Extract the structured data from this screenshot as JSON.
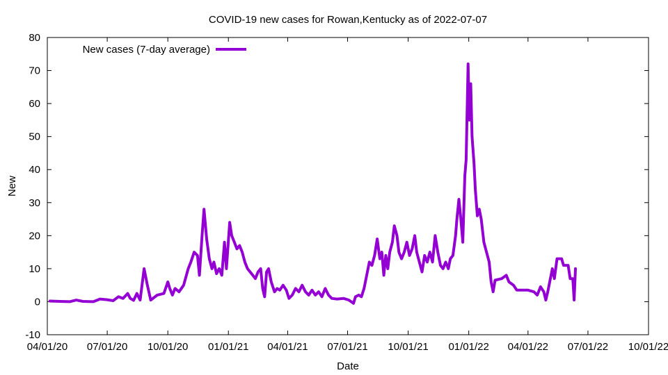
{
  "chart_data": {
    "type": "line",
    "title": "COVID-19 new cases for Rowan,Kentucky as of 2022-07-07",
    "xlabel": "Date",
    "ylabel": "New",
    "legend": {
      "label": "New cases (7-day average)",
      "placement": "top-left"
    },
    "series_color": "#9400d3",
    "xlim": [
      "2020-04-01",
      "2022-10-01"
    ],
    "ylim": [
      -10,
      80
    ],
    "yticks": [
      -10,
      0,
      10,
      20,
      30,
      40,
      50,
      60,
      70,
      80
    ],
    "xticks": [
      {
        "date": "2020-04-01",
        "label": "04/01/20"
      },
      {
        "date": "2020-07-01",
        "label": "07/01/20"
      },
      {
        "date": "2020-10-01",
        "label": "10/01/20"
      },
      {
        "date": "2021-01-01",
        "label": "01/01/21"
      },
      {
        "date": "2021-04-01",
        "label": "04/01/21"
      },
      {
        "date": "2021-07-01",
        "label": "07/01/21"
      },
      {
        "date": "2021-10-01",
        "label": "10/01/21"
      },
      {
        "date": "2022-01-01",
        "label": "01/01/22"
      },
      {
        "date": "2022-04-01",
        "label": "04/01/22"
      },
      {
        "date": "2022-07-01",
        "label": "07/01/22"
      },
      {
        "date": "2022-10-01",
        "label": "10/01/22"
      }
    ],
    "grid": false,
    "series": [
      {
        "name": "New cases (7-day average)",
        "points": [
          [
            "2020-04-05",
            0.2
          ],
          [
            "2020-04-20",
            0.1
          ],
          [
            "2020-05-05",
            0.0
          ],
          [
            "2020-05-15",
            0.5
          ],
          [
            "2020-05-25",
            0.1
          ],
          [
            "2020-06-10",
            0.0
          ],
          [
            "2020-06-20",
            0.8
          ],
          [
            "2020-07-01",
            0.6
          ],
          [
            "2020-07-10",
            0.3
          ],
          [
            "2020-07-18",
            1.5
          ],
          [
            "2020-07-25",
            1.0
          ],
          [
            "2020-08-01",
            2.5
          ],
          [
            "2020-08-05",
            1.0
          ],
          [
            "2020-08-10",
            0.4
          ],
          [
            "2020-08-15",
            2.5
          ],
          [
            "2020-08-20",
            0.5
          ],
          [
            "2020-08-26",
            10.0
          ],
          [
            "2020-08-31",
            5.0
          ],
          [
            "2020-09-05",
            0.5
          ],
          [
            "2020-09-15",
            2.0
          ],
          [
            "2020-09-25",
            2.5
          ],
          [
            "2020-10-01",
            6.0
          ],
          [
            "2020-10-04",
            4.0
          ],
          [
            "2020-10-08",
            2.0
          ],
          [
            "2020-10-12",
            4.0
          ],
          [
            "2020-10-18",
            3.0
          ],
          [
            "2020-10-25",
            5.0
          ],
          [
            "2020-11-01",
            10.0
          ],
          [
            "2020-11-05",
            12.0
          ],
          [
            "2020-11-10",
            15.0
          ],
          [
            "2020-11-15",
            14.0
          ],
          [
            "2020-11-18",
            8.0
          ],
          [
            "2020-11-22",
            20.0
          ],
          [
            "2020-11-25",
            28.0
          ],
          [
            "2020-11-29",
            19.0
          ],
          [
            "2020-12-03",
            13.0
          ],
          [
            "2020-12-07",
            10.0
          ],
          [
            "2020-12-10",
            12.0
          ],
          [
            "2020-12-14",
            8.5
          ],
          [
            "2020-12-18",
            10.0
          ],
          [
            "2020-12-22",
            8.0
          ],
          [
            "2020-12-26",
            18.0
          ],
          [
            "2020-12-29",
            10.0
          ],
          [
            "2021-01-03",
            24.0
          ],
          [
            "2021-01-06",
            20.0
          ],
          [
            "2021-01-10",
            18.0
          ],
          [
            "2021-01-14",
            16.0
          ],
          [
            "2021-01-18",
            17.0
          ],
          [
            "2021-01-22",
            15.0
          ],
          [
            "2021-01-26",
            12.0
          ],
          [
            "2021-01-30",
            10.0
          ],
          [
            "2021-02-03",
            9.0
          ],
          [
            "2021-02-07",
            8.0
          ],
          [
            "2021-02-11",
            7.0
          ],
          [
            "2021-02-15",
            9.0
          ],
          [
            "2021-02-19",
            10.0
          ],
          [
            "2021-02-22",
            4.0
          ],
          [
            "2021-02-25",
            1.5
          ],
          [
            "2021-02-28",
            9.0
          ],
          [
            "2021-03-03",
            10.0
          ],
          [
            "2021-03-07",
            6.0
          ],
          [
            "2021-03-12",
            3.0
          ],
          [
            "2021-03-16",
            4.0
          ],
          [
            "2021-03-20",
            3.5
          ],
          [
            "2021-03-25",
            5.0
          ],
          [
            "2021-03-30",
            3.5
          ],
          [
            "2021-04-03",
            1.0
          ],
          [
            "2021-04-08",
            2.0
          ],
          [
            "2021-04-13",
            4.0
          ],
          [
            "2021-04-18",
            3.0
          ],
          [
            "2021-04-23",
            5.0
          ],
          [
            "2021-04-28",
            3.0
          ],
          [
            "2021-05-03",
            2.0
          ],
          [
            "2021-05-08",
            3.5
          ],
          [
            "2021-05-13",
            2.0
          ],
          [
            "2021-05-18",
            3.0
          ],
          [
            "2021-05-23",
            1.5
          ],
          [
            "2021-05-28",
            4.0
          ],
          [
            "2021-06-02",
            2.0
          ],
          [
            "2021-06-07",
            1.0
          ],
          [
            "2021-06-15",
            0.8
          ],
          [
            "2021-06-25",
            1.0
          ],
          [
            "2021-07-03",
            0.5
          ],
          [
            "2021-07-10",
            -0.5
          ],
          [
            "2021-07-13",
            1.5
          ],
          [
            "2021-07-18",
            2.0
          ],
          [
            "2021-07-22",
            1.5
          ],
          [
            "2021-07-26",
            4.0
          ],
          [
            "2021-07-30",
            8.0
          ],
          [
            "2021-08-03",
            12.0
          ],
          [
            "2021-08-07",
            11.0
          ],
          [
            "2021-08-11",
            14.0
          ],
          [
            "2021-08-15",
            19.0
          ],
          [
            "2021-08-19",
            13.0
          ],
          [
            "2021-08-22",
            15.0
          ],
          [
            "2021-08-25",
            8.0
          ],
          [
            "2021-08-28",
            14.0
          ],
          [
            "2021-08-31",
            10.0
          ],
          [
            "2021-09-03",
            15.0
          ],
          [
            "2021-09-07",
            18.0
          ],
          [
            "2021-09-10",
            23.0
          ],
          [
            "2021-09-14",
            20.0
          ],
          [
            "2021-09-17",
            15.0
          ],
          [
            "2021-09-21",
            13.0
          ],
          [
            "2021-09-25",
            15.0
          ],
          [
            "2021-09-29",
            18.0
          ],
          [
            "2021-10-03",
            14.0
          ],
          [
            "2021-10-07",
            16.0
          ],
          [
            "2021-10-11",
            20.0
          ],
          [
            "2021-10-14",
            15.0
          ],
          [
            "2021-10-18",
            12.0
          ],
          [
            "2021-10-22",
            9.0
          ],
          [
            "2021-10-26",
            14.0
          ],
          [
            "2021-10-30",
            12.0
          ],
          [
            "2021-11-03",
            15.0
          ],
          [
            "2021-11-07",
            12.0
          ],
          [
            "2021-11-11",
            20.0
          ],
          [
            "2021-11-15",
            15.0
          ],
          [
            "2021-11-19",
            11.0
          ],
          [
            "2021-11-23",
            10.0
          ],
          [
            "2021-11-27",
            12.0
          ],
          [
            "2021-12-01",
            10.0
          ],
          [
            "2021-12-04",
            13.0
          ],
          [
            "2021-12-08",
            14.0
          ],
          [
            "2021-12-12",
            20.0
          ],
          [
            "2021-12-14",
            25.0
          ],
          [
            "2021-12-17",
            31.0
          ],
          [
            "2021-12-20",
            25.0
          ],
          [
            "2021-12-23",
            18.0
          ],
          [
            "2021-12-26",
            38.0
          ],
          [
            "2021-12-28",
            43.0
          ],
          [
            "2021-12-31",
            72.0
          ],
          [
            "2022-01-02",
            55.0
          ],
          [
            "2022-01-04",
            66.0
          ],
          [
            "2022-01-06",
            50.0
          ],
          [
            "2022-01-09",
            42.0
          ],
          [
            "2022-01-11",
            34.0
          ],
          [
            "2022-01-14",
            26.0
          ],
          [
            "2022-01-17",
            28.0
          ],
          [
            "2022-01-20",
            25.0
          ],
          [
            "2022-01-24",
            18.0
          ],
          [
            "2022-01-28",
            15.0
          ],
          [
            "2022-02-01",
            12.0
          ],
          [
            "2022-02-04",
            6.0
          ],
          [
            "2022-02-07",
            3.0
          ],
          [
            "2022-02-10",
            6.5
          ],
          [
            "2022-02-20",
            7.0
          ],
          [
            "2022-02-27",
            8.0
          ],
          [
            "2022-03-03",
            6.0
          ],
          [
            "2022-03-10",
            5.0
          ],
          [
            "2022-03-15",
            3.5
          ],
          [
            "2022-03-25",
            3.5
          ],
          [
            "2022-04-01",
            3.5
          ],
          [
            "2022-04-10",
            3.0
          ],
          [
            "2022-04-15",
            2.0
          ],
          [
            "2022-04-20",
            4.5
          ],
          [
            "2022-04-25",
            3.0
          ],
          [
            "2022-04-28",
            0.5
          ],
          [
            "2022-05-01",
            3.0
          ],
          [
            "2022-05-08",
            10.0
          ],
          [
            "2022-05-11",
            7.0
          ],
          [
            "2022-05-15",
            13.0
          ],
          [
            "2022-05-22",
            13.0
          ],
          [
            "2022-05-25",
            11.0
          ],
          [
            "2022-06-01",
            11.0
          ],
          [
            "2022-06-04",
            7.0
          ],
          [
            "2022-06-08",
            7.0
          ],
          [
            "2022-06-10",
            0.5
          ],
          [
            "2022-06-12",
            10.0
          ]
        ]
      }
    ]
  }
}
